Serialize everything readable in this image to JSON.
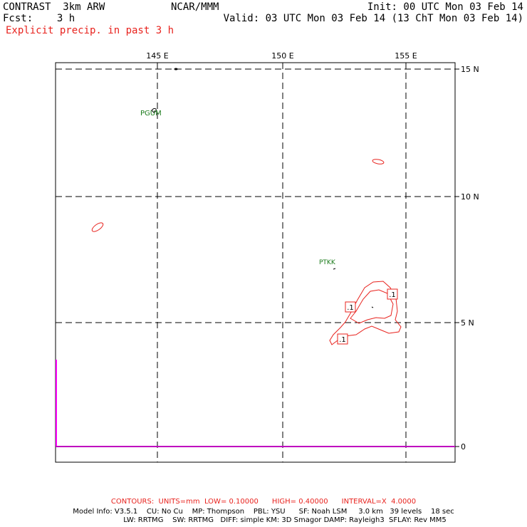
{
  "header": {
    "model": "CONTRAST  3km ARW",
    "forecast": "Fcst:    3 h",
    "field": "Explicit precip. in past 3 h",
    "center": "NCAR/MMM",
    "init": "Init: 00 UTC Mon 03 Feb 14",
    "valid": "Valid: 03 UTC Mon 03 Feb 14 (13 ChT Mon 03 Feb 14)"
  },
  "map": {
    "lon_labels": [
      "145 E",
      "150 E",
      "155 E"
    ],
    "lat_labels": [
      "15 N",
      "10 N",
      "5 N"
    ],
    "xsec_axis_label": "0",
    "stations": [
      "PGUM",
      "PTKK"
    ],
    "contour_labels": [
      ".1",
      ".1",
      ".1"
    ],
    "colors": {
      "contour": "#e8231e",
      "station": "#1a7a1a",
      "xsec": "#ff00ff",
      "frame": "#000000"
    }
  },
  "footer": {
    "contours": "CONTOURS:  UNITS=mm  LOW= 0.10000      HIGH= 0.40000      INTERVAL=X  4.0000",
    "model_info_1": "Model Info: V3.5.1    CU: No Cu    MP: Thompson    PBL: YSU      SF: Noah LSM     3.0 km   39 levels    18 sec",
    "model_info_2": "LW: RRTMG    SW: RRTMG   DIFF: simple KM: 3D Smagor DAMP: Rayleigh3  SFLAY: Rev MM5"
  }
}
